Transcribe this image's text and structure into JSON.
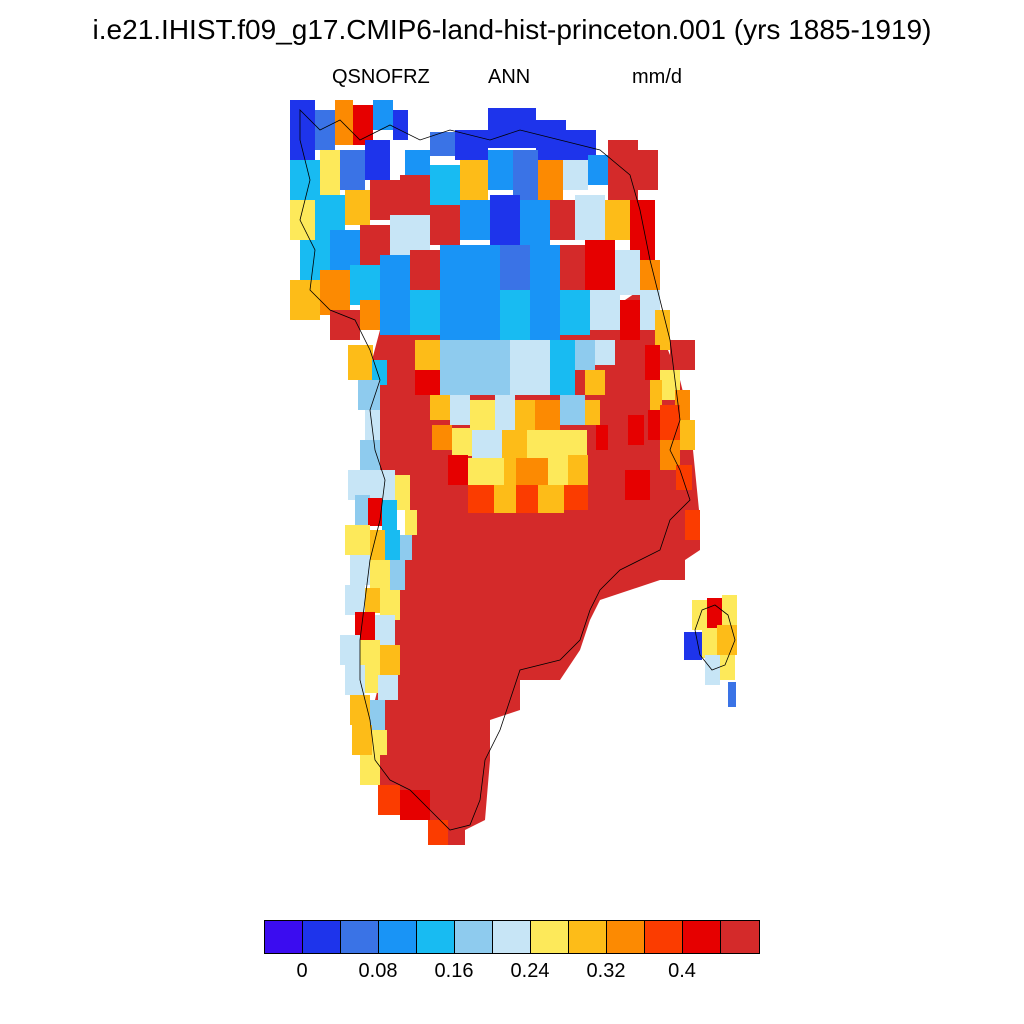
{
  "title": "i.e21.IHIST.f09_g17.CMIP6-land-hist-princeton.001 (yrs 1885-1919)",
  "variable": "QSNOFRZ",
  "season": "ANN",
  "units": "mm/d",
  "colorbar": {
    "colors": [
      "#3b0cf0",
      "#1e34eb",
      "#3a73e6",
      "#1994f6",
      "#18bbf2",
      "#8ecbee",
      "#c7e5f6",
      "#fde95a",
      "#fdbc18",
      "#fc8a02",
      "#fb3c00",
      "#e60000",
      "#d42a2a"
    ],
    "tick_labels": [
      "0",
      "0.08",
      "0.16",
      "0.24",
      "0.32",
      "0.4"
    ]
  }
}
